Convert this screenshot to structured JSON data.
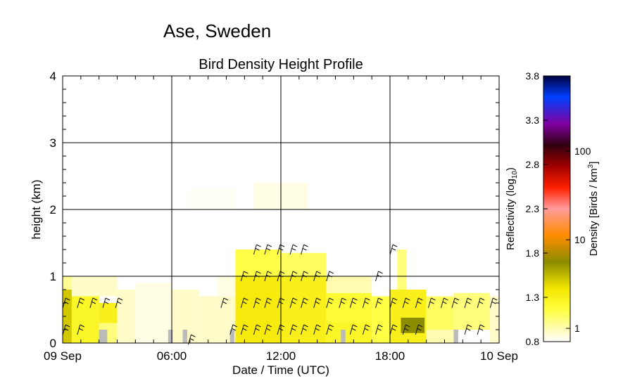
{
  "chart_data": {
    "type": "heatmap",
    "site_title": "Ase, Sweden",
    "title": "Bird Density Height Profile",
    "xlabel": "Date / Time (UTC)",
    "ylabel": "height (km)",
    "x_range_hours": [
      0,
      24
    ],
    "x_ticks": [
      {
        "hour": 0,
        "label": "09 Sep"
      },
      {
        "hour": 6,
        "label": "06:00"
      },
      {
        "hour": 12,
        "label": "12:00"
      },
      {
        "hour": 18,
        "label": "18:00"
      },
      {
        "hour": 24,
        "label": "10 Sep"
      }
    ],
    "ylim": [
      0,
      4
    ],
    "y_ticks": [
      {
        "value": 0,
        "label": "0"
      },
      {
        "value": 1,
        "label": "1"
      },
      {
        "value": 2,
        "label": "2"
      },
      {
        "value": 3,
        "label": "3"
      },
      {
        "value": 4,
        "label": "4"
      }
    ],
    "grid": true,
    "colorbar": {
      "reflectivity_label": "Reflectivity (log",
      "reflectivity_sub": "10",
      "reflectivity_close": ")",
      "density_label": "Density [Birds / km",
      "density_sup": "3",
      "density_close": "]",
      "reflectivity_range": [
        0.8,
        3.8
      ],
      "reflectivity_ticks": [
        "0.8",
        "1.3",
        "1.8",
        "2.3",
        "2.8",
        "3.3",
        "3.8"
      ],
      "density_ticks": [
        {
          "label": "1",
          "reflectivity": 0.95
        },
        {
          "label": "10",
          "reflectivity": 1.95
        },
        {
          "label": "100",
          "reflectivity": 2.95
        }
      ],
      "colors": [
        "#ffffff",
        "#fffbb0",
        "#ffff40",
        "#f4e600",
        "#8c8c00",
        "#ff8c00",
        "#ff9c9c",
        "#ff2000",
        "#a00000",
        "#300010",
        "#8000a0",
        "#0040ff",
        "#000040"
      ]
    },
    "cells": [
      {
        "x": [
          0,
          0.5
        ],
        "y": [
          0,
          0.8
        ],
        "value": 1.5
      },
      {
        "x": [
          0,
          0.5
        ],
        "y": [
          0.8,
          1.0
        ],
        "value": 1.0
      },
      {
        "x": [
          0.5,
          2.0
        ],
        "y": [
          0,
          0.7
        ],
        "value": 1.25
      },
      {
        "x": [
          2.0,
          3.0
        ],
        "y": [
          0.3,
          0.6
        ],
        "value": 1.3
      },
      {
        "x": [
          2.0,
          3.0
        ],
        "y": [
          0,
          0.3
        ],
        "value": 1.05
      },
      {
        "x": [
          0.5,
          3.0
        ],
        "y": [
          0.7,
          1.0
        ],
        "value": 0.9
      },
      {
        "x": [
          3.0,
          4.0
        ],
        "y": [
          0,
          0.8
        ],
        "value": 0.9
      },
      {
        "x": [
          4.0,
          6.0
        ],
        "y": [
          0,
          0.9
        ],
        "value": 0.85
      },
      {
        "x": [
          6.0,
          7.5
        ],
        "y": [
          0,
          0.8
        ],
        "value": 0.9
      },
      {
        "x": [
          7.5,
          9.5
        ],
        "y": [
          0,
          0.7
        ],
        "value": 0.9
      },
      {
        "x": [
          8.5,
          9.5
        ],
        "y": [
          0.7,
          1.0
        ],
        "value": 0.85
      },
      {
        "x": [
          9.5,
          12.0
        ],
        "y": [
          0,
          1.0
        ],
        "value": 1.35
      },
      {
        "x": [
          9.5,
          12.0
        ],
        "y": [
          1.0,
          1.4
        ],
        "value": 1.15
      },
      {
        "x": [
          12.0,
          14.5
        ],
        "y": [
          0,
          1.0
        ],
        "value": 1.3
      },
      {
        "x": [
          12.0,
          14.5
        ],
        "y": [
          1.0,
          1.35
        ],
        "value": 1.1
      },
      {
        "x": [
          14.5,
          17.0
        ],
        "y": [
          0.3,
          0.75
        ],
        "value": 1.2
      },
      {
        "x": [
          14.5,
          17.0
        ],
        "y": [
          0,
          0.3
        ],
        "value": 1.25
      },
      {
        "x": [
          14.5,
          17.0
        ],
        "y": [
          0.75,
          1.0
        ],
        "value": 0.95
      },
      {
        "x": [
          17.0,
          18.0
        ],
        "y": [
          0,
          0.7
        ],
        "value": 1.15
      },
      {
        "x": [
          18.0,
          20.0
        ],
        "y": [
          0,
          0.8
        ],
        "value": 1.3
      },
      {
        "x": [
          18.4,
          18.9
        ],
        "y": [
          0.8,
          1.4
        ],
        "value": 1.05
      },
      {
        "x": [
          18.6,
          19.9
        ],
        "y": [
          0.15,
          0.38
        ],
        "value": 1.7
      },
      {
        "x": [
          20.0,
          21.5
        ],
        "y": [
          0.2,
          0.7
        ],
        "value": 1.1
      },
      {
        "x": [
          20.0,
          21.5
        ],
        "y": [
          0,
          0.2
        ],
        "value": 0.95
      },
      {
        "x": [
          21.5,
          23.5
        ],
        "y": [
          0.2,
          0.75
        ],
        "value": 1.05
      },
      {
        "x": [
          23.5,
          24
        ],
        "y": [
          0,
          0.7
        ],
        "value": 0.9
      },
      {
        "x": [
          10.5,
          13.5
        ],
        "y": [
          2.0,
          2.4
        ],
        "value": 0.85
      },
      {
        "x": [
          7.0,
          9.5
        ],
        "y": [
          2.0,
          2.3
        ],
        "value": 0.82
      }
    ],
    "missing_data_bars": [
      {
        "x": 2.0,
        "width": 0.45
      },
      {
        "x": 5.8,
        "width": 0.25
      },
      {
        "x": 6.6,
        "width": 0.25
      },
      {
        "x": 9.2,
        "width": 0.25
      },
      {
        "x": 15.3,
        "width": 0.25
      },
      {
        "x": 21.5,
        "width": 0.25
      }
    ],
    "wind_barbs": [
      {
        "hour": 0.2,
        "heights": [
          0.2,
          0.6
        ]
      },
      {
        "hour": 1.0,
        "heights": [
          0.2,
          0.6
        ]
      },
      {
        "hour": 1.7,
        "heights": [
          0.6
        ]
      },
      {
        "hour": 2.4,
        "heights": [
          0.6
        ]
      },
      {
        "hour": 3.1,
        "heights": [
          0.6
        ]
      },
      {
        "hour": 7.1,
        "heights": [
          0.05
        ]
      },
      {
        "hour": 8.9,
        "heights": [
          0.6
        ]
      },
      {
        "hour": 9.4,
        "heights": [
          0.2
        ]
      },
      {
        "hour": 10.0,
        "heights": [
          0.2,
          0.6,
          1.0
        ]
      },
      {
        "hour": 10.7,
        "heights": [
          0.2,
          0.6,
          1.0,
          1.4
        ]
      },
      {
        "hour": 11.3,
        "heights": [
          0.2,
          0.6,
          1.0,
          1.4
        ]
      },
      {
        "hour": 12.0,
        "heights": [
          0.2,
          0.6,
          1.0,
          1.4
        ]
      },
      {
        "hour": 12.7,
        "heights": [
          0.2,
          0.6,
          1.0,
          1.4
        ]
      },
      {
        "hour": 13.3,
        "heights": [
          0.2,
          0.6,
          1.0,
          1.4
        ]
      },
      {
        "hour": 14.0,
        "heights": [
          0.2,
          0.6,
          1.0
        ]
      },
      {
        "hour": 14.7,
        "heights": [
          0.2,
          0.6,
          1.0
        ]
      },
      {
        "hour": 15.4,
        "heights": [
          0.6
        ]
      },
      {
        "hour": 16.0,
        "heights": [
          0.2,
          0.6
        ]
      },
      {
        "hour": 16.7,
        "heights": [
          0.2,
          0.6
        ]
      },
      {
        "hour": 17.4,
        "heights": [
          0.2,
          0.6,
          1.0
        ]
      },
      {
        "hour": 18.2,
        "heights": [
          0.2,
          0.6,
          1.4
        ]
      },
      {
        "hour": 18.9,
        "heights": [
          0.2,
          0.6
        ]
      },
      {
        "hour": 19.6,
        "heights": [
          0.2,
          0.6
        ]
      },
      {
        "hour": 20.3,
        "heights": [
          0.6
        ]
      },
      {
        "hour": 21.0,
        "heights": [
          0.6
        ]
      },
      {
        "hour": 21.6,
        "heights": [
          0.6
        ]
      },
      {
        "hour": 22.3,
        "heights": [
          0.2,
          0.6
        ]
      },
      {
        "hour": 23.0,
        "heights": [
          0.2,
          0.6
        ]
      },
      {
        "hour": 23.7,
        "heights": [
          0.6
        ]
      }
    ]
  }
}
